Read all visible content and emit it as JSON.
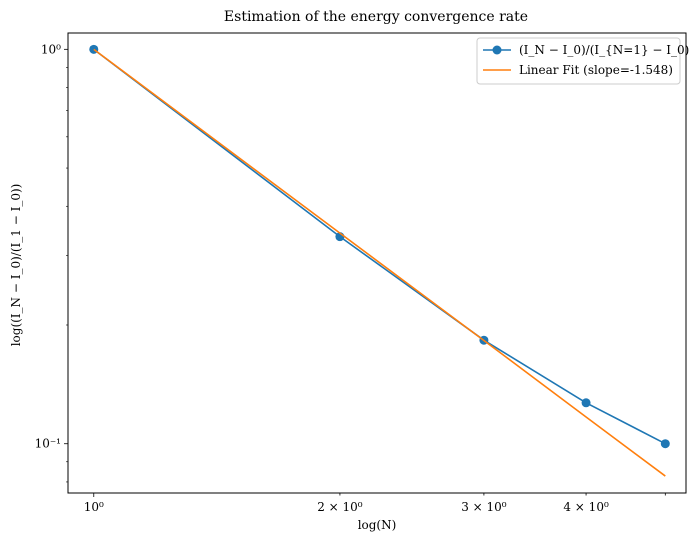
{
  "chart_data": {
    "type": "line",
    "title": "Estimation of the energy convergence rate",
    "xlabel": "log(N)",
    "ylabel": "log((I_N − I_0)/(I_1 − I_0))",
    "xscale": "log",
    "yscale": "log",
    "xlim": [
      0.93,
      5.3
    ],
    "ylim": [
      0.075,
      1.1
    ],
    "x_ticks": [
      {
        "value": 1,
        "label": "10⁰"
      },
      {
        "value": 2,
        "label": "2 × 10⁰"
      },
      {
        "value": 3,
        "label": "3 × 10⁰"
      },
      {
        "value": 4,
        "label": "4 × 10⁰"
      }
    ],
    "y_ticks": [
      {
        "value": 1,
        "label": "10⁰"
      },
      {
        "value": 0.1,
        "label": "10⁻¹"
      }
    ],
    "legend_position": "top-right",
    "grid": false,
    "series": [
      {
        "name": "(I_N − I_0)/(I_{N=1} − I_0)",
        "style": "line-marker",
        "color": "#1f77b4",
        "x": [
          1,
          2,
          3,
          4,
          5
        ],
        "y": [
          1.0,
          0.335,
          0.183,
          0.127,
          0.1
        ]
      },
      {
        "name": "Linear Fit (slope=-1.548)",
        "style": "line",
        "color": "#ff7f0e",
        "x": [
          1,
          2,
          3,
          4,
          5
        ],
        "y": [
          1.0,
          0.342,
          0.1827,
          0.1169,
          0.0828
        ]
      }
    ]
  }
}
